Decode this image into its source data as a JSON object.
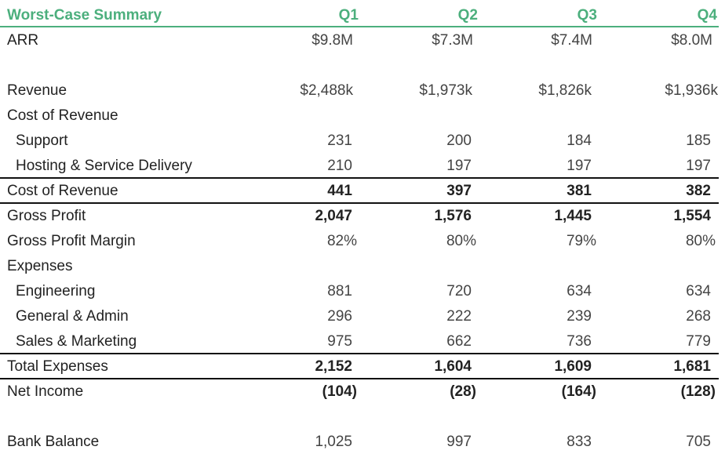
{
  "title": "Worst-Case Summary",
  "quarters": [
    "Q1",
    "Q2",
    "Q3",
    "Q4"
  ],
  "rows": {
    "arr": {
      "label": "ARR",
      "values": [
        "$9.8M",
        "$7.3M",
        "$7.4M",
        "$8.0M"
      ]
    },
    "revenue": {
      "label": "Revenue",
      "values": [
        "$2,488k",
        "$1,973k",
        "$1,826k",
        "$1,936k"
      ]
    },
    "cost_of_revenue_header": {
      "label": "Cost of Revenue"
    },
    "support": {
      "label": "Support",
      "values": [
        "231",
        "200",
        "184",
        "185"
      ]
    },
    "hosting": {
      "label": "Hosting & Service Delivery",
      "values": [
        "210",
        "197",
        "197",
        "197"
      ]
    },
    "cost_of_revenue_total": {
      "label": "Cost of Revenue",
      "values": [
        "441",
        "397",
        "381",
        "382"
      ]
    },
    "gross_profit": {
      "label": "Gross Profit",
      "values": [
        "2,047",
        "1,576",
        "1,445",
        "1,554"
      ]
    },
    "gross_profit_margin": {
      "label": "Gross Profit Margin",
      "values": [
        "82%",
        "80%",
        "79%",
        "80%"
      ]
    },
    "expenses_header": {
      "label": "Expenses"
    },
    "engineering": {
      "label": "Engineering",
      "values": [
        "881",
        "720",
        "634",
        "634"
      ]
    },
    "general_admin": {
      "label": "General & Admin",
      "values": [
        "296",
        "222",
        "239",
        "268"
      ]
    },
    "sales_marketing": {
      "label": "Sales & Marketing",
      "values": [
        "975",
        "662",
        "736",
        "779"
      ]
    },
    "total_expenses": {
      "label": "Total Expenses",
      "values": [
        "2,152",
        "1,604",
        "1,609",
        "1,681"
      ]
    },
    "net_income": {
      "label": "Net Income",
      "values": [
        "(104)",
        "(28)",
        "(164)",
        "(128)"
      ]
    },
    "bank_balance": {
      "label": "Bank Balance",
      "values": [
        "1,025",
        "997",
        "833",
        "705"
      ]
    }
  },
  "colors": {
    "header_green": "#4caf7d",
    "rule": "#111111"
  }
}
